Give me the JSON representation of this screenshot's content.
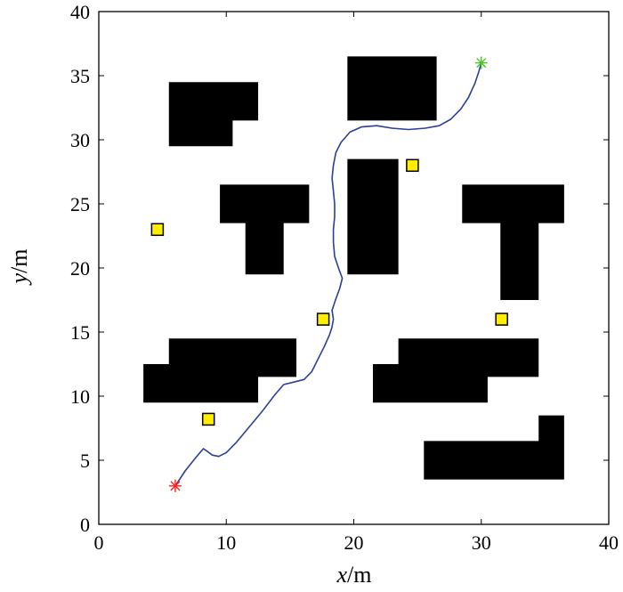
{
  "chart_data": {
    "type": "scatter",
    "xlabel": {
      "var": "x",
      "unit": "/m"
    },
    "ylabel": {
      "var": "y",
      "unit": "/m"
    },
    "xlim": [
      0,
      40
    ],
    "ylim": [
      0,
      40
    ],
    "xticks": [
      "0",
      "10",
      "20",
      "30",
      "40"
    ],
    "yticks": [
      "0",
      "5",
      "10",
      "15",
      "20",
      "25",
      "30",
      "35",
      "40"
    ],
    "grid": false,
    "colors": {
      "obstacle": "#000000",
      "path": "#2a3f9a",
      "target_fill": "#ffee00",
      "target_edge": "#000000",
      "start": "#ff2020",
      "goal": "#4cc02a"
    },
    "obstacles": [
      [
        [
          5.5,
          29.5
        ],
        [
          10.5,
          29.5
        ],
        [
          10.5,
          31.5
        ],
        [
          12.5,
          31.5
        ],
        [
          12.5,
          34.5
        ],
        [
          5.5,
          34.5
        ]
      ],
      [
        [
          19.5,
          31.5
        ],
        [
          26.5,
          31.5
        ],
        [
          26.5,
          36.5
        ],
        [
          19.5,
          36.5
        ]
      ],
      [
        [
          9.5,
          23.5
        ],
        [
          11.5,
          23.5
        ],
        [
          11.5,
          19.5
        ],
        [
          14.5,
          19.5
        ],
        [
          14.5,
          23.5
        ],
        [
          16.5,
          23.5
        ],
        [
          16.5,
          26.5
        ],
        [
          9.5,
          26.5
        ]
      ],
      [
        [
          19.5,
          19.5
        ],
        [
          23.5,
          19.5
        ],
        [
          23.5,
          28.5
        ],
        [
          19.5,
          28.5
        ]
      ],
      [
        [
          28.5,
          23.5
        ],
        [
          31.5,
          23.5
        ],
        [
          31.5,
          17.5
        ],
        [
          34.5,
          17.5
        ],
        [
          34.5,
          23.5
        ],
        [
          36.5,
          23.5
        ],
        [
          36.5,
          26.5
        ],
        [
          28.5,
          26.5
        ]
      ],
      [
        [
          3.5,
          9.5
        ],
        [
          12.5,
          9.5
        ],
        [
          12.5,
          11.5
        ],
        [
          15.5,
          11.5
        ],
        [
          15.5,
          14.5
        ],
        [
          5.5,
          14.5
        ],
        [
          5.5,
          12.5
        ],
        [
          3.5,
          12.5
        ]
      ],
      [
        [
          21.5,
          9.5
        ],
        [
          30.5,
          9.5
        ],
        [
          30.5,
          11.5
        ],
        [
          34.5,
          11.5
        ],
        [
          34.5,
          14.5
        ],
        [
          23.5,
          14.5
        ],
        [
          23.5,
          12.5
        ],
        [
          21.5,
          12.5
        ]
      ],
      [
        [
          25.5,
          3.5
        ],
        [
          36.5,
          3.5
        ],
        [
          36.5,
          8.5
        ],
        [
          34.5,
          8.5
        ],
        [
          34.5,
          6.5
        ],
        [
          25.5,
          6.5
        ]
      ]
    ],
    "targets": [
      [
        4.6,
        23.0
      ],
      [
        8.6,
        8.2
      ],
      [
        17.6,
        16.0
      ],
      [
        24.6,
        28.0
      ],
      [
        31.6,
        16.0
      ]
    ],
    "start": [
      6.0,
      3.0
    ],
    "goal": [
      30.0,
      36.0
    ],
    "path": [
      [
        6.0,
        3.0
      ],
      [
        6.8,
        4.2
      ],
      [
        7.6,
        5.2
      ],
      [
        8.2,
        5.9
      ],
      [
        8.5,
        5.7
      ],
      [
        8.9,
        5.4
      ],
      [
        9.4,
        5.3
      ],
      [
        10.0,
        5.6
      ],
      [
        10.8,
        6.4
      ],
      [
        11.8,
        7.6
      ],
      [
        12.8,
        8.8
      ],
      [
        13.8,
        10.1
      ],
      [
        14.5,
        10.9
      ],
      [
        15.3,
        11.1
      ],
      [
        16.1,
        11.3
      ],
      [
        16.7,
        11.9
      ],
      [
        17.2,
        12.9
      ],
      [
        17.7,
        13.9
      ],
      [
        18.1,
        14.8
      ],
      [
        18.3,
        15.4
      ],
      [
        18.4,
        16.0
      ],
      [
        18.3,
        16.7
      ],
      [
        18.6,
        17.6
      ],
      [
        18.9,
        18.4
      ],
      [
        19.1,
        19.2
      ],
      [
        18.8,
        20.0
      ],
      [
        18.5,
        20.9
      ],
      [
        18.4,
        22.0
      ],
      [
        18.4,
        23.0
      ],
      [
        18.5,
        24.0
      ],
      [
        18.5,
        25.0
      ],
      [
        18.4,
        26.0
      ],
      [
        18.3,
        27.0
      ],
      [
        18.4,
        28.0
      ],
      [
        18.6,
        29.0
      ],
      [
        19.0,
        29.8
      ],
      [
        19.7,
        30.6
      ],
      [
        20.6,
        31.0
      ],
      [
        21.8,
        31.1
      ],
      [
        23.0,
        30.9
      ],
      [
        24.3,
        30.8
      ],
      [
        25.6,
        30.9
      ],
      [
        26.7,
        31.1
      ],
      [
        27.6,
        31.6
      ],
      [
        28.4,
        32.4
      ],
      [
        29.0,
        33.3
      ],
      [
        29.5,
        34.4
      ],
      [
        29.8,
        35.3
      ],
      [
        30.0,
        36.0
      ]
    ]
  }
}
